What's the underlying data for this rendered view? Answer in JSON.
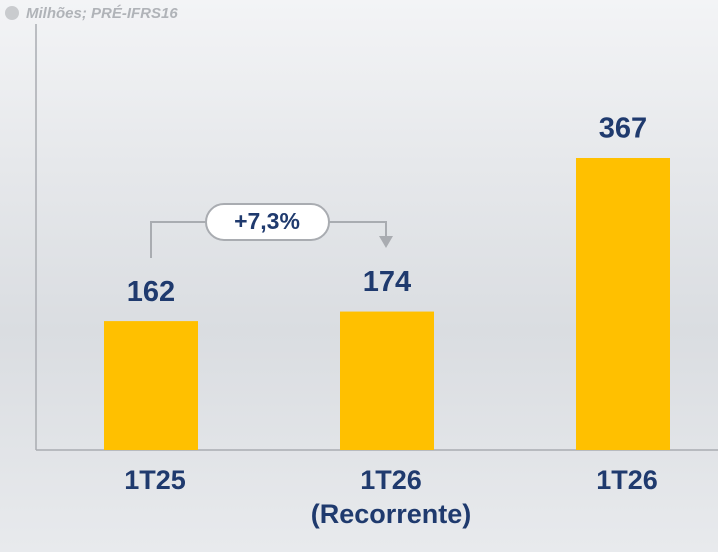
{
  "chart_data": {
    "type": "bar",
    "subtitle": "Milhões; PRÉ-IFRS16",
    "categories": [
      "1T25",
      "1T26 (Recorrente)",
      "1T26"
    ],
    "values": [
      162,
      174,
      367
    ],
    "color": "#FFC000",
    "annotation": "+7,3%"
  }
}
